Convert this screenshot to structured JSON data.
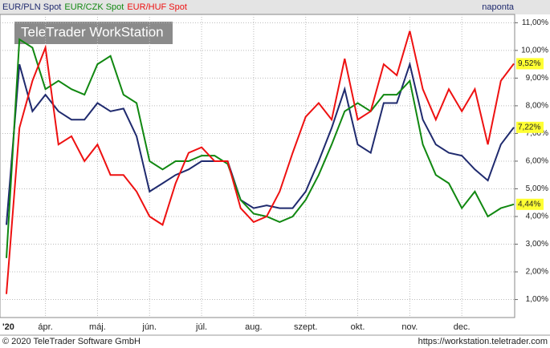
{
  "chart_data": {
    "type": "line",
    "header": "naponta",
    "watermark": "TeleTrader WorkStation",
    "footer_left": "© 2020 TeleTrader Software GmbH",
    "footer_right": "https://workstation.teletrader.com",
    "categories": [
      "'20",
      null,
      null,
      "ápr.",
      null,
      null,
      null,
      "máj.",
      null,
      null,
      null,
      "jún.",
      null,
      null,
      null,
      "júl.",
      null,
      null,
      null,
      "aug.",
      null,
      null,
      null,
      "szept.",
      null,
      null,
      null,
      "okt.",
      null,
      null,
      null,
      "nov.",
      null,
      null,
      null,
      "dec.",
      null,
      null,
      null,
      null
    ],
    "series": [
      {
        "name": "EUR/PLN Spot",
        "color": "#1f2a6e",
        "end_label": "7,22%",
        "values": [
          3.7,
          9.5,
          7.8,
          8.4,
          7.8,
          7.5,
          7.5,
          8.1,
          7.8,
          7.9,
          6.9,
          4.9,
          5.2,
          5.5,
          5.7,
          6.0,
          6.0,
          6.0,
          4.6,
          4.3,
          4.4,
          4.3,
          4.3,
          4.9,
          6.0,
          7.2,
          8.6,
          6.6,
          6.3,
          8.1,
          8.1,
          9.5,
          7.5,
          6.6,
          6.3,
          6.2,
          5.7,
          5.3,
          6.6,
          7.22
        ]
      },
      {
        "name": "EUR/CZK Spot",
        "color": "#118811",
        "end_label": "4,44%",
        "values": [
          2.5,
          10.4,
          10.1,
          8.6,
          8.9,
          8.6,
          8.4,
          9.5,
          9.8,
          8.4,
          8.1,
          6.0,
          5.7,
          6.0,
          6.0,
          6.2,
          6.2,
          5.9,
          4.6,
          4.1,
          4.0,
          3.8,
          4.0,
          4.6,
          5.5,
          6.6,
          7.8,
          8.1,
          7.8,
          8.4,
          8.4,
          8.9,
          6.6,
          5.5,
          5.2,
          4.3,
          4.9,
          4.0,
          4.3,
          4.44
        ]
      },
      {
        "name": "EUR/HUF Spot",
        "color": "#ee1111",
        "end_label": "9,52%",
        "values": [
          1.2,
          7.2,
          8.9,
          10.1,
          6.6,
          6.9,
          6.0,
          6.6,
          5.5,
          5.5,
          4.9,
          4.0,
          3.7,
          5.2,
          6.3,
          6.5,
          6.0,
          6.0,
          4.3,
          3.8,
          4.0,
          4.9,
          6.3,
          7.6,
          8.1,
          7.5,
          9.7,
          7.5,
          7.8,
          9.5,
          9.1,
          10.7,
          8.6,
          7.5,
          8.6,
          7.8,
          8.6,
          6.6,
          8.9,
          9.52
        ]
      }
    ],
    "ylim": [
      0.35,
      11.3
    ],
    "yticks": [
      {
        "value": 1,
        "label": "1,00%"
      },
      {
        "value": 2,
        "label": "2,00%"
      },
      {
        "value": 3,
        "label": "3,00%"
      },
      {
        "value": 4,
        "label": "4,00%"
      },
      {
        "value": 5,
        "label": "5,00%"
      },
      {
        "value": 6,
        "label": "6,00%"
      },
      {
        "value": 7,
        "label": "7,00%"
      },
      {
        "value": 8,
        "label": "8,00%"
      },
      {
        "value": 9,
        "label": "9,00%"
      },
      {
        "value": 10,
        "label": "10,00%"
      },
      {
        "value": 11,
        "label": "11,00%"
      }
    ],
    "grid": true
  }
}
